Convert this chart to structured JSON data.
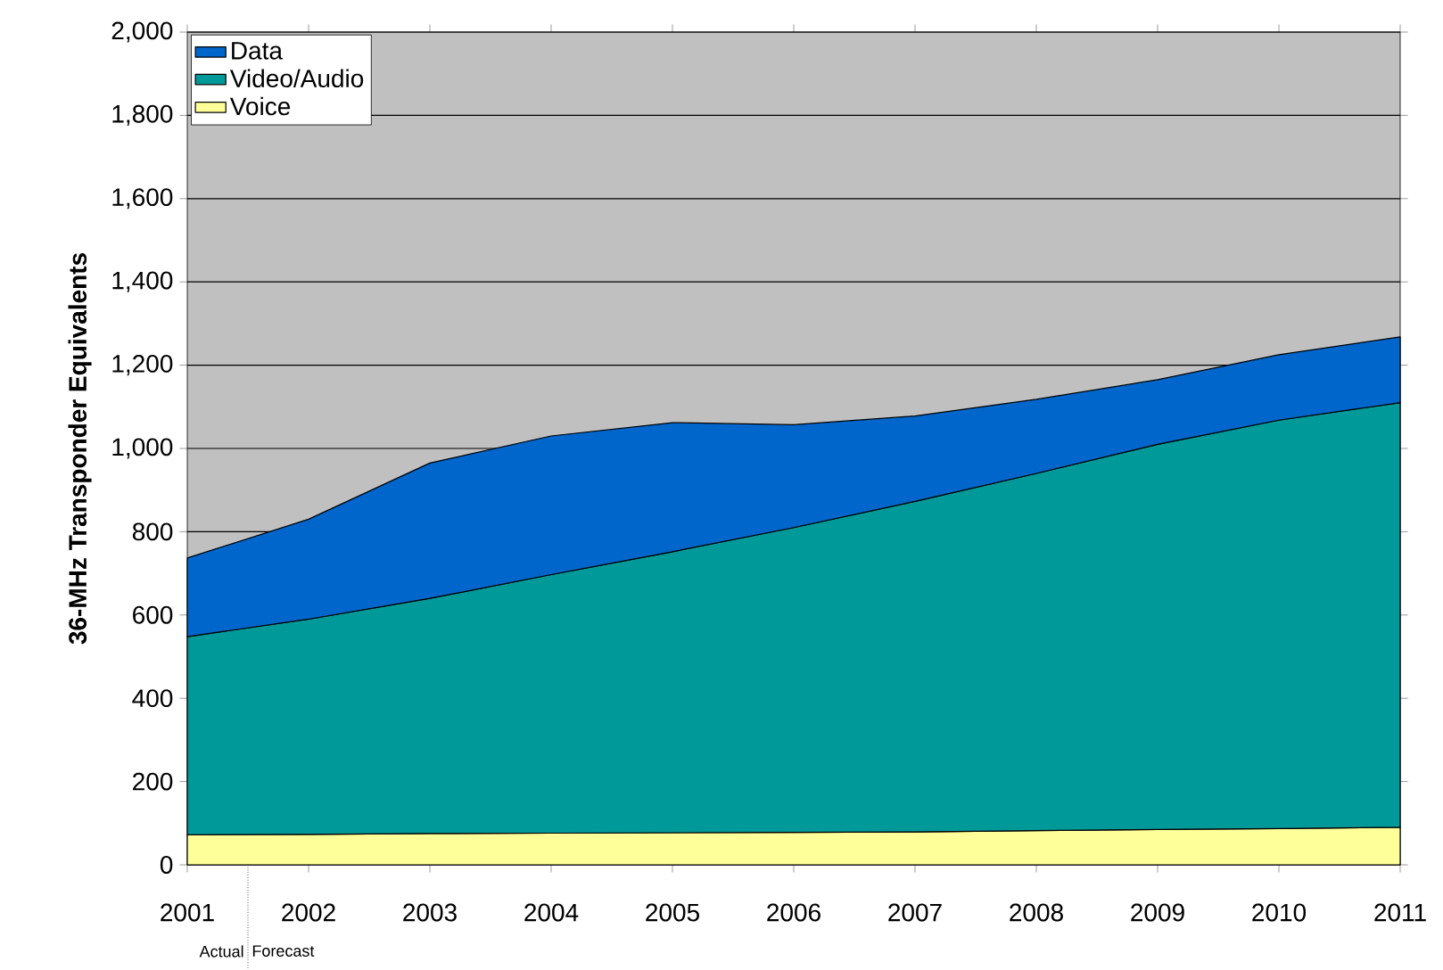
{
  "chart_data": {
    "type": "area",
    "ylabel": "36-MHz Transponder Equivalents",
    "stacked": true,
    "categories": [
      "2001",
      "2002",
      "2003",
      "2004",
      "2005",
      "2006",
      "2007",
      "2008",
      "2009",
      "2010",
      "2011"
    ],
    "series": [
      {
        "name": "Voice",
        "color": "#ffff99",
        "values": [
          72,
          73,
          75,
          76,
          77,
          78,
          79,
          82,
          85,
          87,
          90
        ]
      },
      {
        "name": "Video/Audio",
        "color": "#009999",
        "values": [
          476,
          517,
          565,
          621,
          675,
          732,
          794,
          858,
          925,
          981,
          1020
        ]
      },
      {
        "name": "Data",
        "color": "#0066cc",
        "values": [
          189,
          240,
          325,
          333,
          310,
          247,
          205,
          178,
          155,
          157,
          158
        ]
      }
    ],
    "ylim": [
      0,
      2000
    ],
    "yticks": [
      0,
      {
        "value": 200,
        "label": "200"
      },
      {
        "value": 400,
        "label": "400"
      },
      {
        "value": 600,
        "label": "600"
      },
      {
        "value": 800,
        "label": "800"
      },
      {
        "value": 1000,
        "label": "1,000"
      },
      {
        "value": 1200,
        "label": "1,200"
      },
      {
        "value": 1400,
        "label": "1,400"
      },
      {
        "value": 1600,
        "label": "1,600"
      },
      {
        "value": 1800,
        "label": "1,800"
      },
      {
        "value": 2000,
        "label": "2,000"
      }
    ],
    "grid": "y",
    "legend": "top left",
    "annotations": [
      "Actual",
      "Forecast"
    ]
  }
}
